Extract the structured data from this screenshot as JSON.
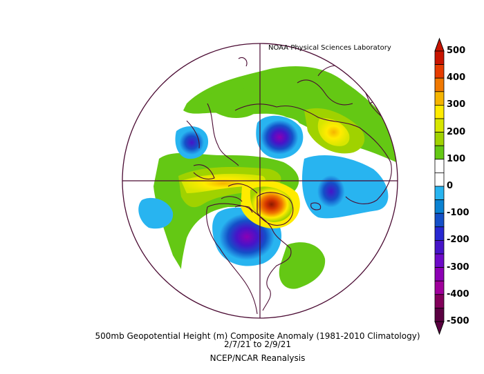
{
  "credit": "NOAA Physical Sciences Laboratory",
  "caption": {
    "line1": "500mb Geopotential Height (m) Composite Anomaly (1981-2010 Climatology)",
    "line2": "2/7/21   to 2/9/21",
    "line3": "NCEP/NCAR Reanalysis"
  },
  "colorbar": {
    "labels": [
      "500",
      "400",
      "300",
      "200",
      "100",
      "0",
      "-100",
      "-200",
      "-300",
      "-400",
      "-500"
    ],
    "colors": [
      "#c81400",
      "#e63c00",
      "#f07800",
      "#f5b400",
      "#ffeb00",
      "#d7e600",
      "#a0d200",
      "#64c814",
      "#ffffff",
      "#ffffff",
      "#28b4f0",
      "#0a82d2",
      "#1450c8",
      "#2828d2",
      "#4614c8",
      "#6e0ac8",
      "#8c00b4",
      "#a0009b",
      "#82005a",
      "#5a0041"
    ]
  }
}
